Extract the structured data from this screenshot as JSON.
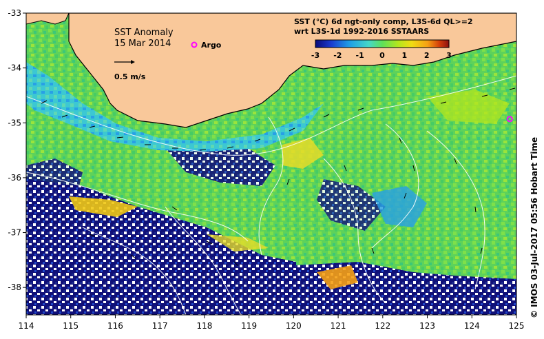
{
  "map": {
    "title": "SST Anomaly",
    "date": "15 Mar 2014",
    "legend_argo": "Argo",
    "scale_label": "0.5 m/s",
    "product_line1": "SST (°C) 6d ngt-only comp, L3S-6d QL>=2",
    "product_line2": "wrt L3S-1d 1992-2016 SSTAARS",
    "credit": "© IMOS 03-Jul-2017 05:56 Hobart Time",
    "colors": {
      "land": "#f9c89a",
      "no_data": "#ffffff",
      "coast": "#000000",
      "contour": "#ffffff",
      "argo": "#ff00ff"
    },
    "colorbar": {
      "min": -3,
      "max": 3,
      "ticks": [
        "-3",
        "-2",
        "-1",
        "0",
        "1",
        "2",
        "3"
      ],
      "colors": [
        "#0a0a78",
        "#1a3cd0",
        "#1e9be6",
        "#46d8c8",
        "#5ee05a",
        "#b4e61e",
        "#f0dc14",
        "#f5a014",
        "#d23c0a",
        "#8c1010"
      ]
    },
    "x_axis": {
      "ticks": [
        "114",
        "115",
        "116",
        "117",
        "118",
        "119",
        "120",
        "121",
        "122",
        "123",
        "124",
        "125"
      ],
      "range": [
        114,
        125
      ]
    },
    "y_axis": {
      "ticks": [
        "-33",
        "-34",
        "-35",
        "-36",
        "-37",
        "-38"
      ],
      "range": [
        -38.5,
        -33
      ]
    },
    "argo_floats": [
      {
        "lon": 117.9,
        "lat": -33.58
      },
      {
        "lon": 124.85,
        "lat": -34.93
      }
    ]
  }
}
